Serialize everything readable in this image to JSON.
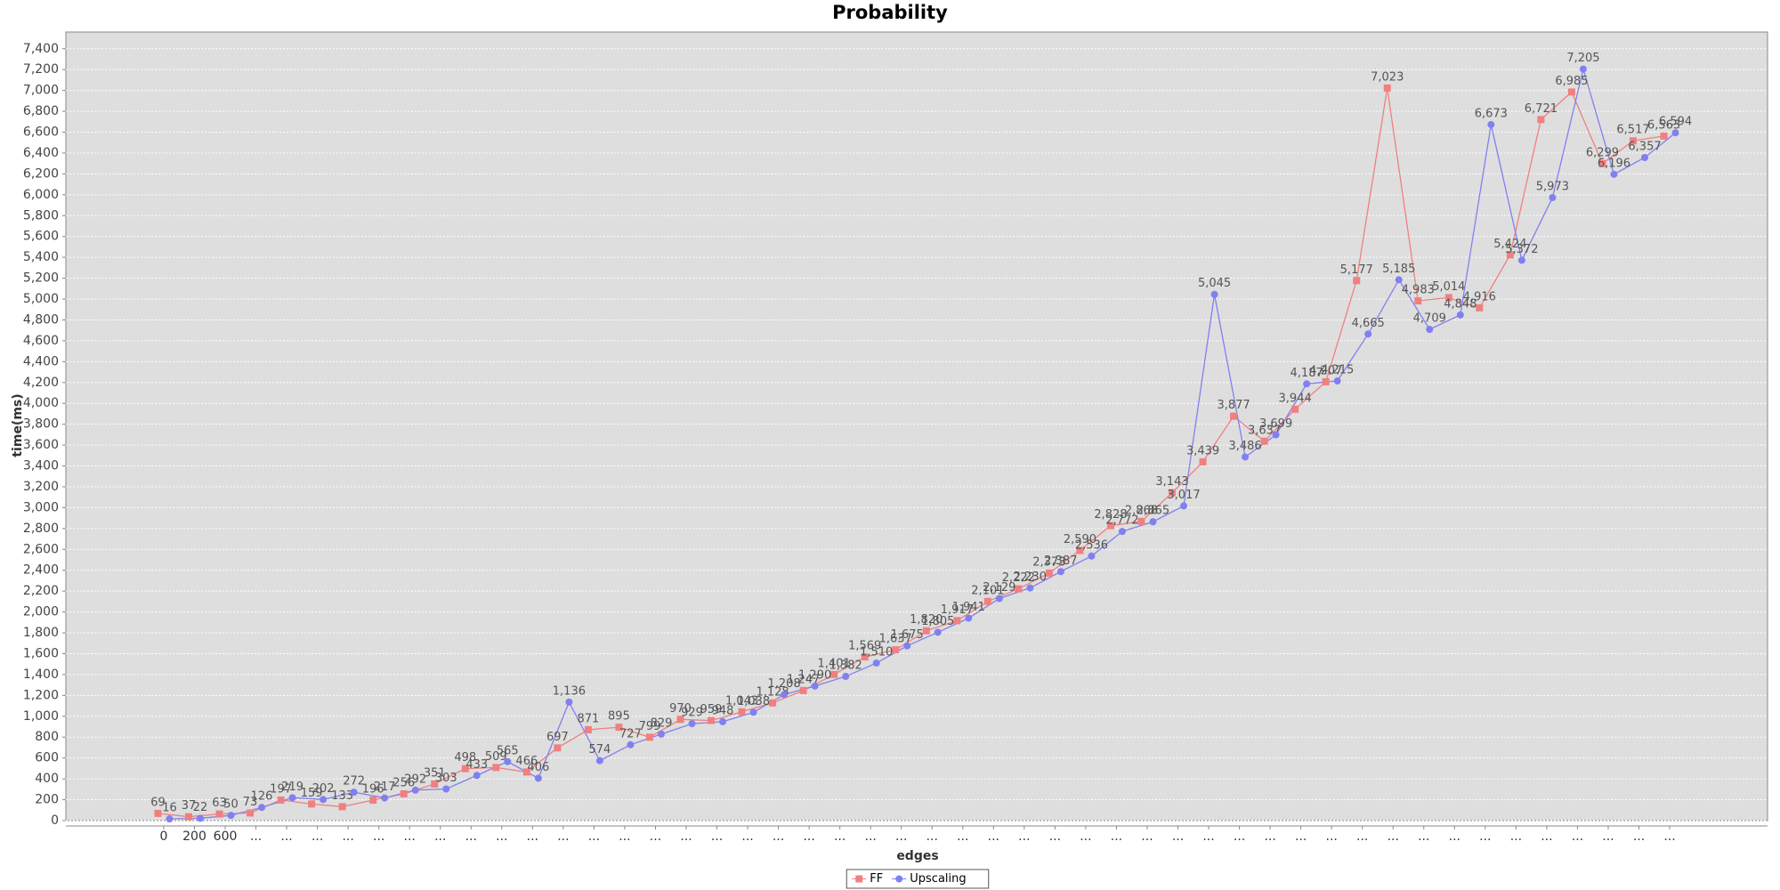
{
  "chart_data": {
    "type": "line",
    "title": "Probability",
    "x_label": "edges",
    "y_label": "time(ms)",
    "categories": [
      "0",
      "200",
      "600",
      "...",
      "...",
      "...",
      "...",
      "...",
      "...",
      "...",
      "...",
      "...",
      "...",
      "...",
      "...",
      "...",
      "...",
      "...",
      "...",
      "...",
      "...",
      "...",
      "...",
      "...",
      "...",
      "...",
      "...",
      "...",
      "...",
      "...",
      "...",
      "...",
      "...",
      "...",
      "...",
      "...",
      "...",
      "...",
      "...",
      "...",
      "...",
      "...",
      "...",
      "...",
      "...",
      "...",
      "...",
      "...",
      "...",
      "..."
    ],
    "series": [
      {
        "name": "FF",
        "color": "#f08080",
        "marker": "square",
        "values": [
          69,
          37,
          63,
          73,
          197,
          159,
          133,
          196,
          256,
          351,
          498,
          509,
          466,
          697,
          871,
          895,
          799,
          970,
          959,
          1043,
          1128,
          1247,
          1401,
          1569,
          1637,
          1820,
          1917,
          2101,
          2222,
          2373,
          2590,
          2828,
          2868,
          3143,
          3439,
          3877,
          3637,
          3944,
          4207,
          5177,
          7023,
          4983,
          5014,
          4916,
          5424,
          6721,
          6985,
          6299,
          6517,
          6563
        ],
        "value_labels": [
          "69",
          "37",
          "63",
          "73",
          "197",
          "159",
          "133",
          "196",
          "256",
          "351",
          "498",
          "509",
          "466",
          "697",
          "871",
          "895",
          "799",
          "970",
          "959",
          "1,043",
          "1,128",
          "1,247",
          "1,401",
          "1,569",
          "1,637",
          "1,820",
          "1,917",
          "2,101",
          "2,222",
          "2,373",
          "2,590",
          "2,828",
          "2,868",
          "3,143",
          "3,439",
          "3,877",
          "3,637",
          "3,944",
          "4,207",
          "5,177",
          "7,023",
          "4,983",
          "5,014",
          "4,916",
          "5,424",
          "6,721",
          "6,985",
          "6,299",
          "6,517",
          "6,563"
        ]
      },
      {
        "name": "Upscaling",
        "color": "#8080f0",
        "marker": "circle",
        "values": [
          16,
          22,
          50,
          126,
          219,
          202,
          272,
          217,
          292,
          303,
          433,
          565,
          406,
          1136,
          574,
          727,
          829,
          929,
          948,
          1038,
          1208,
          1290,
          1382,
          1510,
          1675,
          1805,
          1941,
          2129,
          2230,
          2387,
          2536,
          2772,
          2865,
          3017,
          5045,
          3486,
          3699,
          4187,
          4215,
          4665,
          5185,
          4709,
          4848,
          6673,
          5372,
          5973,
          7205,
          6196,
          6357,
          6594
        ],
        "value_labels": [
          "16",
          "22",
          "50",
          "126",
          "219",
          "202",
          "272",
          "217",
          "292",
          "303",
          "433",
          "565",
          "406",
          "1,136",
          "574",
          "727",
          "829",
          "929",
          "948",
          "1,038",
          "1,208",
          "1,290",
          "1,382",
          "1,510",
          "1,675",
          "1,805",
          "1,941",
          "2,129",
          "2,230",
          "2,387",
          "2,536",
          "2,772",
          "2,865",
          "3,017",
          "5,045",
          "3,486",
          "3,699",
          "4,187",
          "4,215",
          "4,665",
          "5,185",
          "4,709",
          "4,848",
          "6,673",
          "5,372",
          "5,973",
          "7,205",
          "6,196",
          "6,357",
          "6,594"
        ]
      }
    ],
    "ylim": [
      0,
      7560
    ],
    "yticks": [
      0,
      200,
      400,
      600,
      800,
      {
        "value": 1000,
        "label": "1,000"
      },
      {
        "value": 1200,
        "label": "1,200"
      },
      {
        "value": 1400,
        "label": "1,400"
      },
      {
        "value": 1600,
        "label": "1,600"
      },
      {
        "value": 1800,
        "label": "1,800"
      },
      {
        "value": 2000,
        "label": "2,000"
      },
      {
        "value": 2200,
        "label": "2,200"
      },
      {
        "value": 2400,
        "label": "2,400"
      },
      {
        "value": 2600,
        "label": "2,600"
      },
      {
        "value": 2800,
        "label": "2,800"
      },
      {
        "value": 3000,
        "label": "3,000"
      },
      {
        "value": 3200,
        "label": "3,200"
      },
      {
        "value": 3400,
        "label": "3,400"
      },
      {
        "value": 3600,
        "label": "3,600"
      },
      {
        "value": 3800,
        "label": "3,800"
      },
      {
        "value": 4000,
        "label": "4,000"
      },
      {
        "value": 4200,
        "label": "4,200"
      },
      {
        "value": 4400,
        "label": "4,400"
      },
      {
        "value": 4600,
        "label": "4,600"
      },
      {
        "value": 4800,
        "label": "4,800"
      },
      {
        "value": 5000,
        "label": "5,000"
      },
      {
        "value": 5200,
        "label": "5,200"
      },
      {
        "value": 5400,
        "label": "5,400"
      },
      {
        "value": 5600,
        "label": "5,600"
      },
      {
        "value": 5800,
        "label": "5,800"
      },
      {
        "value": 6000,
        "label": "6,000"
      },
      {
        "value": 6200,
        "label": "6,200"
      },
      {
        "value": 6400,
        "label": "6,400"
      },
      {
        "value": 6600,
        "label": "6,600"
      },
      {
        "value": 6800,
        "label": "6,800"
      },
      {
        "value": 7000,
        "label": "7,000"
      },
      {
        "value": 7200,
        "label": "7,200"
      },
      {
        "value": 7400,
        "label": "7,400"
      }
    ],
    "grid": true,
    "legend": "bottom"
  }
}
